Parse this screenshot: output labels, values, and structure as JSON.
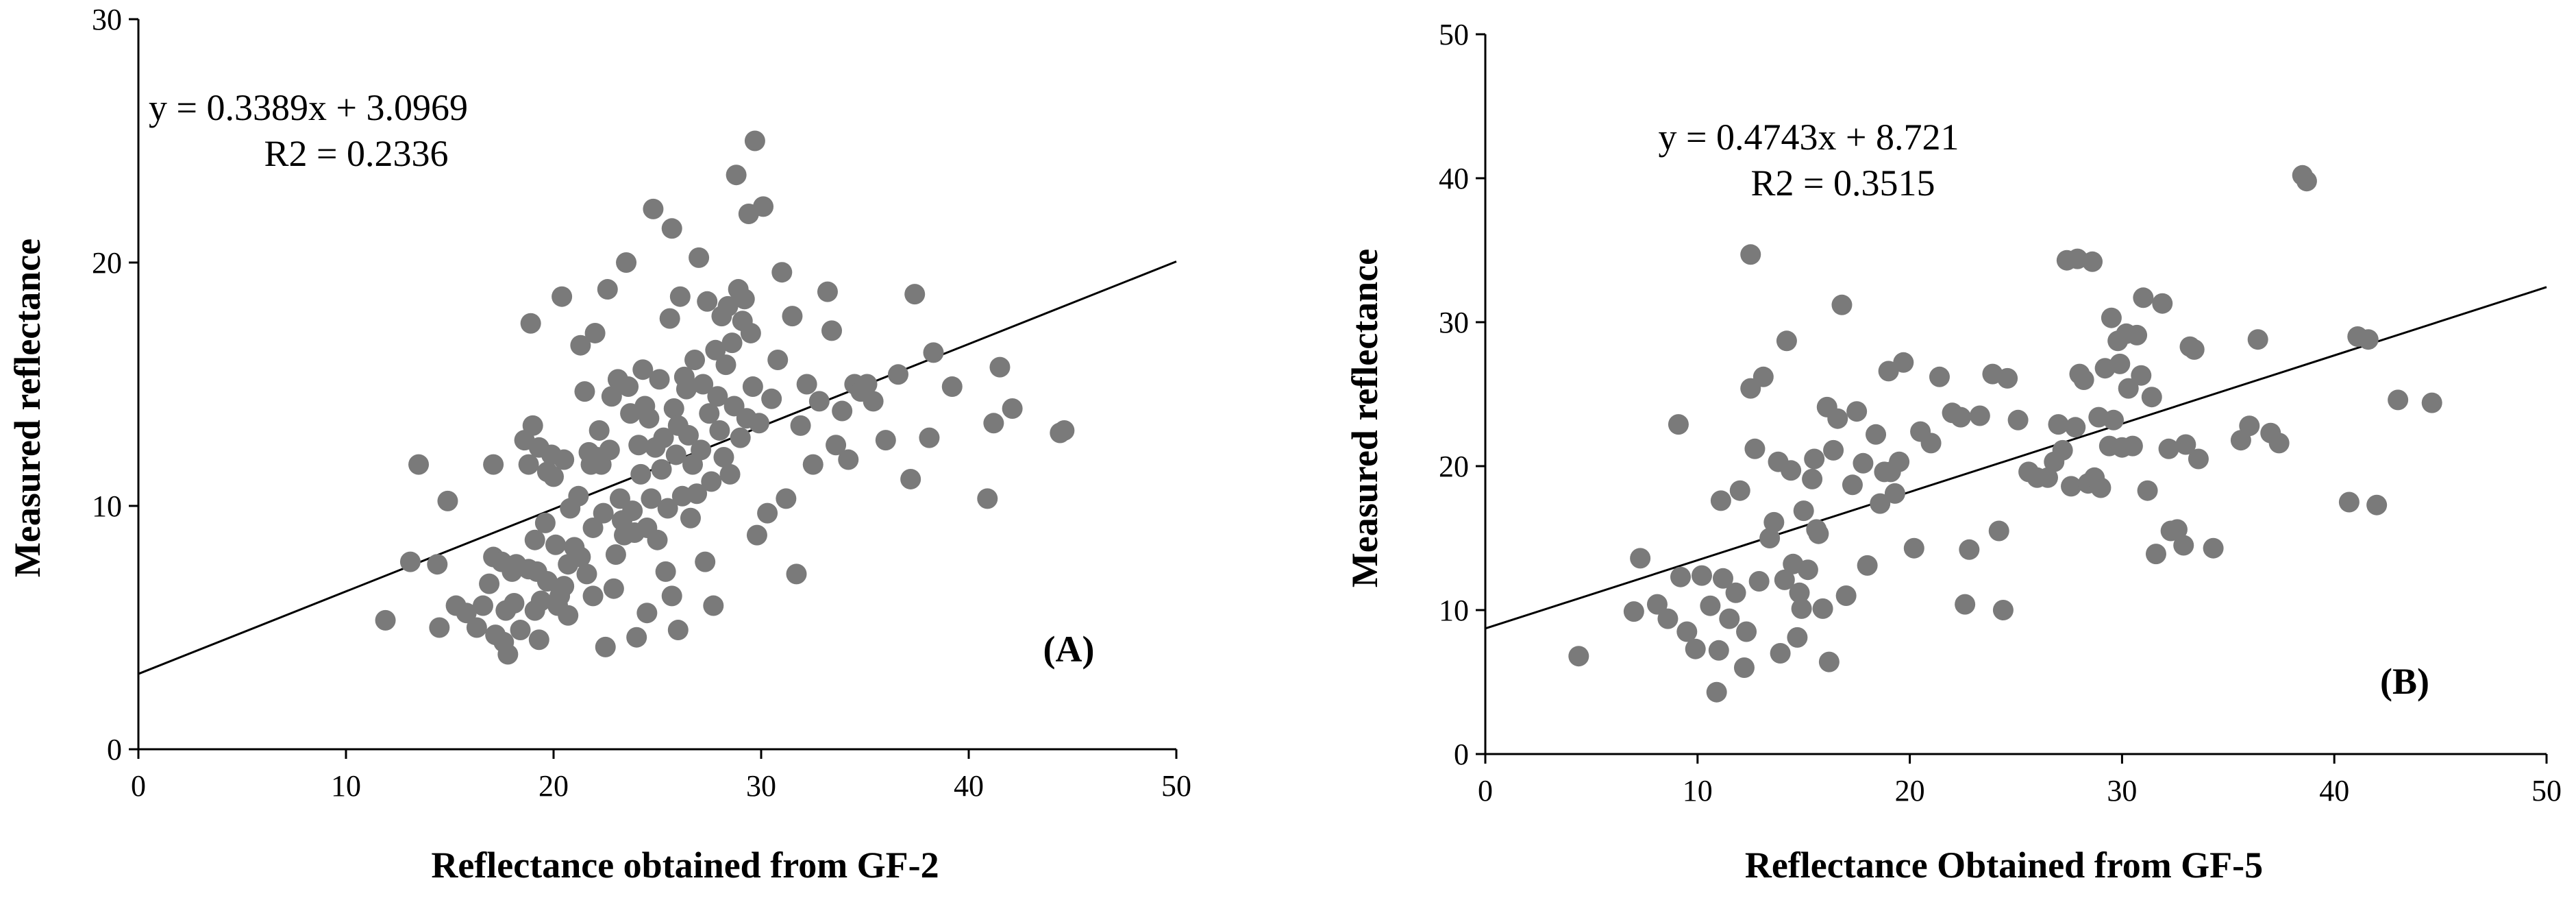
{
  "chart_data": [
    {
      "type": "scatter",
      "panel_label": "(A)",
      "xlabel": "Reflectance obtained from GF-2",
      "ylabel": "Measured reflectance",
      "xlim": [
        0,
        50
      ],
      "ylim": [
        0,
        30
      ],
      "xticks": [
        "0",
        "10",
        "20",
        "30",
        "40",
        "50"
      ],
      "yticks": [
        "0",
        "10",
        "20",
        "30"
      ],
      "equation": "y = 0.3389x + 3.0969",
      "r2": "R2 = 0.2336",
      "fit": {
        "slope": 0.3389,
        "intercept": 3.0969
      },
      "points": [
        [
          11.9,
          5.3
        ],
        [
          13.1,
          7.7
        ],
        [
          13.5,
          11.7
        ],
        [
          14.4,
          7.6
        ],
        [
          14.5,
          5.0
        ],
        [
          14.9,
          10.2
        ],
        [
          15.3,
          5.9
        ],
        [
          15.8,
          5.6
        ],
        [
          16.3,
          5.0
        ],
        [
          16.6,
          5.9
        ],
        [
          16.9,
          6.8
        ],
        [
          17.1,
          11.7
        ],
        [
          17.1,
          7.9
        ],
        [
          17.2,
          4.7
        ],
        [
          17.5,
          7.7
        ],
        [
          17.6,
          4.4
        ],
        [
          17.7,
          5.7
        ],
        [
          17.8,
          3.9
        ],
        [
          18.0,
          7.3
        ],
        [
          18.1,
          6.0
        ],
        [
          18.2,
          7.6
        ],
        [
          18.4,
          4.9
        ],
        [
          18.6,
          12.7
        ],
        [
          18.8,
          11.7
        ],
        [
          18.8,
          7.4
        ],
        [
          18.9,
          17.5
        ],
        [
          19.0,
          13.3
        ],
        [
          19.1,
          8.6
        ],
        [
          19.1,
          5.7
        ],
        [
          19.2,
          7.3
        ],
        [
          19.3,
          12.4
        ],
        [
          19.3,
          4.5
        ],
        [
          19.4,
          6.1
        ],
        [
          19.6,
          9.3
        ],
        [
          19.7,
          11.4
        ],
        [
          19.7,
          6.9
        ],
        [
          19.9,
          12.1
        ],
        [
          20.0,
          11.2
        ],
        [
          20.1,
          8.4
        ],
        [
          20.2,
          5.9
        ],
        [
          20.3,
          6.3
        ],
        [
          20.4,
          18.6
        ],
        [
          20.5,
          11.9
        ],
        [
          20.5,
          6.7
        ],
        [
          20.7,
          7.6
        ],
        [
          20.7,
          5.5
        ],
        [
          20.8,
          9.9
        ],
        [
          21.0,
          8.3
        ],
        [
          21.2,
          10.4
        ],
        [
          21.3,
          7.9
        ],
        [
          21.3,
          16.6
        ],
        [
          21.5,
          14.7
        ],
        [
          21.6,
          7.2
        ],
        [
          21.7,
          12.2
        ],
        [
          21.8,
          11.7
        ],
        [
          21.9,
          9.1
        ],
        [
          21.9,
          6.3
        ],
        [
          22.0,
          17.1
        ],
        [
          22.1,
          12.0
        ],
        [
          22.2,
          13.1
        ],
        [
          22.3,
          11.7
        ],
        [
          22.4,
          9.7
        ],
        [
          22.5,
          4.2
        ],
        [
          22.6,
          18.9
        ],
        [
          22.7,
          12.3
        ],
        [
          22.8,
          14.5
        ],
        [
          22.9,
          6.6
        ],
        [
          23.0,
          8.0
        ],
        [
          23.1,
          15.2
        ],
        [
          23.2,
          10.3
        ],
        [
          23.3,
          9.4
        ],
        [
          23.4,
          8.8
        ],
        [
          23.5,
          20.0
        ],
        [
          23.6,
          14.9
        ],
        [
          23.7,
          13.8
        ],
        [
          23.8,
          9.8
        ],
        [
          23.9,
          8.9
        ],
        [
          24.0,
          4.6
        ],
        [
          24.1,
          12.5
        ],
        [
          24.2,
          11.3
        ],
        [
          24.3,
          15.6
        ],
        [
          24.4,
          14.1
        ],
        [
          24.5,
          9.1
        ],
        [
          24.5,
          5.6
        ],
        [
          24.6,
          13.6
        ],
        [
          24.7,
          10.3
        ],
        [
          24.8,
          22.2
        ],
        [
          24.9,
          12.4
        ],
        [
          25.0,
          8.6
        ],
        [
          25.1,
          15.2
        ],
        [
          25.2,
          11.5
        ],
        [
          25.3,
          12.8
        ],
        [
          25.4,
          7.3
        ],
        [
          25.5,
          9.9
        ],
        [
          25.6,
          17.7
        ],
        [
          25.7,
          6.3
        ],
        [
          25.7,
          21.4
        ],
        [
          25.8,
          14.0
        ],
        [
          25.9,
          12.1
        ],
        [
          26.0,
          13.3
        ],
        [
          26.0,
          4.9
        ],
        [
          26.1,
          18.6
        ],
        [
          26.2,
          10.4
        ],
        [
          26.3,
          15.3
        ],
        [
          26.4,
          14.8
        ],
        [
          26.5,
          12.9
        ],
        [
          26.6,
          9.5
        ],
        [
          26.7,
          11.7
        ],
        [
          26.8,
          16.0
        ],
        [
          26.9,
          10.5
        ],
        [
          27.0,
          20.2
        ],
        [
          27.1,
          12.3
        ],
        [
          27.2,
          15.0
        ],
        [
          27.3,
          7.7
        ],
        [
          27.4,
          18.4
        ],
        [
          27.5,
          13.8
        ],
        [
          27.6,
          11.0
        ],
        [
          27.7,
          5.9
        ],
        [
          27.8,
          16.4
        ],
        [
          27.9,
          14.5
        ],
        [
          28.0,
          13.1
        ],
        [
          28.1,
          17.8
        ],
        [
          28.2,
          12.0
        ],
        [
          28.3,
          15.8
        ],
        [
          28.4,
          18.2
        ],
        [
          28.5,
          11.3
        ],
        [
          28.6,
          16.7
        ],
        [
          28.7,
          14.1
        ],
        [
          28.8,
          23.6
        ],
        [
          28.9,
          18.9
        ],
        [
          29.0,
          12.8
        ],
        [
          29.1,
          17.6
        ],
        [
          29.2,
          18.5
        ],
        [
          29.3,
          13.6
        ],
        [
          29.4,
          22.0
        ],
        [
          29.5,
          17.1
        ],
        [
          29.6,
          14.9
        ],
        [
          29.7,
          25.0
        ],
        [
          29.8,
          8.8
        ],
        [
          29.9,
          13.4
        ],
        [
          30.1,
          22.3
        ],
        [
          30.3,
          9.7
        ],
        [
          30.5,
          14.4
        ],
        [
          30.8,
          16.0
        ],
        [
          31.0,
          19.6
        ],
        [
          31.2,
          10.3
        ],
        [
          31.5,
          17.8
        ],
        [
          31.7,
          7.2
        ],
        [
          31.9,
          13.3
        ],
        [
          32.2,
          15.0
        ],
        [
          32.5,
          11.7
        ],
        [
          32.8,
          14.3
        ],
        [
          33.2,
          18.8
        ],
        [
          33.4,
          17.2
        ],
        [
          33.6,
          12.5
        ],
        [
          33.9,
          13.9
        ],
        [
          34.2,
          11.9
        ],
        [
          34.5,
          15.0
        ],
        [
          34.8,
          14.7
        ],
        [
          35.1,
          15.0
        ],
        [
          35.4,
          14.3
        ],
        [
          36.0,
          12.7
        ],
        [
          36.6,
          15.4
        ],
        [
          37.2,
          11.1
        ],
        [
          37.4,
          18.7
        ],
        [
          38.1,
          12.8
        ],
        [
          38.3,
          16.3
        ],
        [
          39.2,
          14.9
        ],
        [
          40.9,
          10.3
        ],
        [
          41.2,
          13.4
        ],
        [
          41.5,
          15.7
        ],
        [
          42.1,
          14.0
        ],
        [
          44.4,
          13.0
        ],
        [
          44.6,
          13.1
        ]
      ]
    },
    {
      "type": "scatter",
      "panel_label": "(B)",
      "xlabel": "Reflectance Obtained from GF-5",
      "ylabel": "Measured reflectance",
      "xlim": [
        0,
        50
      ],
      "ylim": [
        0,
        50
      ],
      "xticks": [
        "0",
        "10",
        "20",
        "30",
        "40",
        "50"
      ],
      "yticks": [
        "0",
        "10",
        "20",
        "30",
        "40",
        "50"
      ],
      "equation": "y = 0.4743x + 8.721",
      "r2": "R2 = 0.3515",
      "fit": {
        "slope": 0.4743,
        "intercept": 8.721
      },
      "points": [
        [
          4.4,
          6.8
        ],
        [
          7.0,
          9.9
        ],
        [
          7.3,
          13.6
        ],
        [
          8.1,
          10.4
        ],
        [
          8.6,
          9.4
        ],
        [
          9.1,
          22.9
        ],
        [
          9.2,
          12.3
        ],
        [
          9.5,
          8.5
        ],
        [
          9.9,
          7.3
        ],
        [
          10.2,
          12.4
        ],
        [
          10.6,
          10.3
        ],
        [
          10.9,
          4.3
        ],
        [
          11.0,
          7.2
        ],
        [
          11.1,
          17.6
        ],
        [
          11.2,
          12.2
        ],
        [
          11.5,
          9.4
        ],
        [
          11.8,
          11.2
        ],
        [
          12.0,
          18.3
        ],
        [
          12.2,
          6.0
        ],
        [
          12.3,
          8.5
        ],
        [
          12.5,
          34.7
        ],
        [
          12.5,
          25.4
        ],
        [
          12.7,
          21.2
        ],
        [
          12.9,
          12.0
        ],
        [
          13.1,
          26.2
        ],
        [
          13.4,
          15.0
        ],
        [
          13.6,
          16.1
        ],
        [
          13.8,
          20.3
        ],
        [
          13.9,
          7.0
        ],
        [
          14.1,
          12.1
        ],
        [
          14.2,
          28.7
        ],
        [
          14.4,
          19.7
        ],
        [
          14.5,
          13.2
        ],
        [
          14.7,
          8.1
        ],
        [
          14.8,
          11.2
        ],
        [
          14.9,
          10.1
        ],
        [
          15.0,
          16.9
        ],
        [
          15.2,
          12.8
        ],
        [
          15.4,
          19.1
        ],
        [
          15.5,
          20.5
        ],
        [
          15.6,
          15.6
        ],
        [
          15.7,
          15.3
        ],
        [
          15.9,
          10.1
        ],
        [
          16.1,
          24.1
        ],
        [
          16.2,
          6.4
        ],
        [
          16.4,
          21.1
        ],
        [
          16.6,
          23.3
        ],
        [
          16.8,
          31.2
        ],
        [
          17.0,
          11.0
        ],
        [
          17.3,
          18.7
        ],
        [
          17.5,
          23.8
        ],
        [
          17.8,
          20.2
        ],
        [
          18.0,
          13.1
        ],
        [
          18.4,
          22.2
        ],
        [
          18.6,
          17.4
        ],
        [
          18.8,
          19.6
        ],
        [
          19.0,
          26.6
        ],
        [
          19.1,
          19.6
        ],
        [
          19.3,
          18.1
        ],
        [
          19.5,
          20.3
        ],
        [
          19.7,
          27.2
        ],
        [
          20.2,
          14.3
        ],
        [
          20.5,
          22.4
        ],
        [
          21.0,
          21.6
        ],
        [
          21.4,
          26.2
        ],
        [
          22.0,
          23.7
        ],
        [
          22.4,
          23.4
        ],
        [
          22.6,
          10.4
        ],
        [
          22.8,
          14.2
        ],
        [
          23.3,
          23.5
        ],
        [
          23.9,
          26.4
        ],
        [
          24.2,
          15.5
        ],
        [
          24.4,
          10.0
        ],
        [
          24.6,
          26.1
        ],
        [
          25.1,
          23.2
        ],
        [
          25.6,
          19.6
        ],
        [
          26.0,
          19.2
        ],
        [
          26.5,
          19.2
        ],
        [
          26.8,
          20.3
        ],
        [
          27.0,
          22.9
        ],
        [
          27.2,
          21.1
        ],
        [
          27.4,
          34.3
        ],
        [
          27.6,
          18.6
        ],
        [
          27.8,
          22.7
        ],
        [
          27.9,
          34.4
        ],
        [
          28.0,
          26.4
        ],
        [
          28.2,
          26.0
        ],
        [
          28.4,
          18.8
        ],
        [
          28.6,
          34.2
        ],
        [
          28.7,
          19.2
        ],
        [
          28.9,
          23.4
        ],
        [
          29.0,
          18.5
        ],
        [
          29.2,
          26.8
        ],
        [
          29.4,
          21.4
        ],
        [
          29.5,
          30.3
        ],
        [
          29.6,
          23.2
        ],
        [
          29.8,
          28.7
        ],
        [
          29.9,
          27.1
        ],
        [
          30.0,
          21.3
        ],
        [
          30.2,
          29.2
        ],
        [
          30.3,
          25.4
        ],
        [
          30.5,
          21.4
        ],
        [
          30.7,
          29.1
        ],
        [
          30.9,
          26.3
        ],
        [
          31.0,
          31.7
        ],
        [
          31.2,
          18.3
        ],
        [
          31.4,
          24.8
        ],
        [
          31.6,
          13.9
        ],
        [
          31.9,
          31.3
        ],
        [
          32.2,
          21.2
        ],
        [
          32.3,
          15.5
        ],
        [
          32.6,
          15.6
        ],
        [
          32.9,
          14.5
        ],
        [
          33.0,
          21.5
        ],
        [
          33.2,
          28.3
        ],
        [
          33.4,
          28.1
        ],
        [
          33.6,
          20.5
        ],
        [
          34.3,
          14.3
        ],
        [
          35.6,
          21.8
        ],
        [
          36.0,
          22.8
        ],
        [
          36.4,
          28.8
        ],
        [
          37.0,
          22.3
        ],
        [
          37.4,
          21.6
        ],
        [
          38.5,
          40.2
        ],
        [
          38.7,
          39.8
        ],
        [
          40.7,
          17.5
        ],
        [
          41.1,
          29.0
        ],
        [
          41.6,
          28.8
        ],
        [
          42.0,
          17.3
        ],
        [
          43.0,
          24.6
        ],
        [
          44.6,
          24.4
        ]
      ]
    }
  ]
}
